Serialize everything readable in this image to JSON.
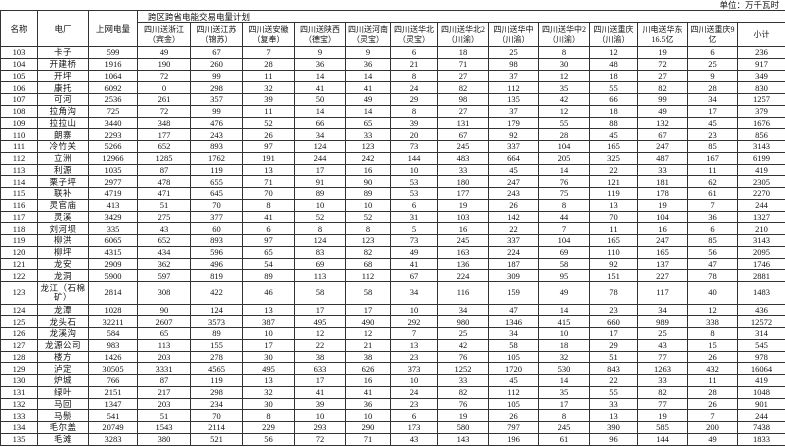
{
  "unit_label": "单位：万千瓦时",
  "headers": {
    "id": "名称",
    "plant": "电厂",
    "grid": "上网电量",
    "group": "跨区跨省电能交易电量计划",
    "sub": [
      "四川送浙江（宾金）",
      "四川送江苏（锦苏）",
      "四川送安徽（复奉）",
      "四川送陕西（德宝）",
      "四川送河南（灵宝）",
      "四川送华北（灵宝）",
      "四川送华北2（川渝）",
      "四川送华中（川渝）",
      "四川送华中2（川渝）",
      "四川送重庆（川渝）",
      "川电送华东16.5亿",
      "四川送重庆9亿",
      "小计"
    ]
  },
  "rows": [
    [
      "103",
      "卡子",
      "599",
      "49",
      "67",
      "7",
      "9",
      "9",
      "6",
      "18",
      "25",
      "8",
      "12",
      "19",
      "6",
      "236"
    ],
    [
      "104",
      "开建桥",
      "1916",
      "190",
      "260",
      "28",
      "36",
      "36",
      "21",
      "71",
      "98",
      "30",
      "48",
      "72",
      "25",
      "917"
    ],
    [
      "105",
      "开坪",
      "1064",
      "72",
      "99",
      "11",
      "14",
      "14",
      "8",
      "27",
      "37",
      "12",
      "18",
      "27",
      "9",
      "349"
    ],
    [
      "106",
      "康托",
      "6092",
      "0",
      "298",
      "32",
      "41",
      "41",
      "24",
      "82",
      "112",
      "35",
      "55",
      "82",
      "28",
      "830"
    ],
    [
      "107",
      "可河",
      "2536",
      "261",
      "357",
      "39",
      "50",
      "49",
      "29",
      "98",
      "135",
      "42",
      "66",
      "99",
      "34",
      "1257"
    ],
    [
      "108",
      "拉角沟",
      "725",
      "72",
      "99",
      "11",
      "14",
      "14",
      "8",
      "27",
      "37",
      "12",
      "18",
      "49",
      "17",
      "379"
    ],
    [
      "109",
      "拉拉山",
      "3440",
      "348",
      "476",
      "52",
      "66",
      "65",
      "39",
      "131",
      "179",
      "55",
      "88",
      "132",
      "45",
      "1676"
    ],
    [
      "110",
      "朗寨",
      "2293",
      "177",
      "243",
      "26",
      "34",
      "33",
      "20",
      "67",
      "92",
      "28",
      "45",
      "67",
      "23",
      "856"
    ],
    [
      "111",
      "冷竹关",
      "5266",
      "652",
      "893",
      "97",
      "124",
      "123",
      "73",
      "245",
      "337",
      "104",
      "165",
      "247",
      "85",
      "3143"
    ],
    [
      "112",
      "立洲",
      "12966",
      "1285",
      "1762",
      "191",
      "244",
      "242",
      "144",
      "483",
      "664",
      "205",
      "325",
      "487",
      "167",
      "6199"
    ],
    [
      "113",
      "利源",
      "1035",
      "87",
      "119",
      "13",
      "17",
      "16",
      "10",
      "33",
      "45",
      "14",
      "22",
      "33",
      "11",
      "419"
    ],
    [
      "114",
      "栗子坪",
      "2977",
      "478",
      "655",
      "71",
      "91",
      "90",
      "53",
      "180",
      "247",
      "76",
      "121",
      "181",
      "62",
      "2305"
    ],
    [
      "115",
      "联补",
      "4719",
      "471",
      "645",
      "70",
      "89",
      "89",
      "53",
      "177",
      "243",
      "75",
      "119",
      "178",
      "61",
      "2270"
    ],
    [
      "116",
      "灵官庙",
      "413",
      "51",
      "70",
      "8",
      "10",
      "10",
      "6",
      "19",
      "26",
      "8",
      "13",
      "19",
      "7",
      "244"
    ],
    [
      "117",
      "灵溪",
      "3429",
      "275",
      "377",
      "41",
      "52",
      "52",
      "31",
      "103",
      "142",
      "44",
      "70",
      "104",
      "36",
      "1327"
    ],
    [
      "118",
      "刘河坝",
      "335",
      "43",
      "60",
      "6",
      "8",
      "8",
      "5",
      "16",
      "22",
      "7",
      "11",
      "16",
      "6",
      "210"
    ],
    [
      "119",
      "柳洪",
      "6065",
      "652",
      "893",
      "97",
      "124",
      "123",
      "73",
      "245",
      "337",
      "104",
      "165",
      "247",
      "85",
      "3143"
    ],
    [
      "120",
      "柳坪",
      "4315",
      "434",
      "596",
      "65",
      "83",
      "82",
      "49",
      "163",
      "224",
      "69",
      "110",
      "165",
      "56",
      "2095"
    ],
    [
      "121",
      "龙安",
      "2909",
      "362",
      "496",
      "54",
      "69",
      "68",
      "41",
      "136",
      "187",
      "58",
      "92",
      "137",
      "47",
      "1746"
    ],
    [
      "122",
      "龙洞",
      "5900",
      "597",
      "819",
      "89",
      "113",
      "112",
      "67",
      "224",
      "309",
      "95",
      "151",
      "227",
      "78",
      "2881"
    ],
    [
      "123",
      "龙江（石棉矿）",
      "2814",
      "308",
      "422",
      "46",
      "58",
      "58",
      "34",
      "116",
      "159",
      "49",
      "78",
      "117",
      "40",
      "1483"
    ],
    [
      "124",
      "龙潭",
      "1028",
      "90",
      "124",
      "13",
      "17",
      "17",
      "10",
      "34",
      "47",
      "14",
      "23",
      "34",
      "12",
      "436"
    ],
    [
      "125",
      "龙头石",
      "32211",
      "2607",
      "3573",
      "387",
      "495",
      "490",
      "292",
      "980",
      "1346",
      "415",
      "660",
      "989",
      "338",
      "12572"
    ],
    [
      "126",
      "龙溪沟",
      "584",
      "65",
      "89",
      "10",
      "12",
      "12",
      "7",
      "25",
      "34",
      "10",
      "17",
      "25",
      "8",
      "314"
    ],
    [
      "127",
      "龙源公司",
      "983",
      "113",
      "155",
      "17",
      "22",
      "21",
      "13",
      "42",
      "58",
      "18",
      "29",
      "43",
      "15",
      "545"
    ],
    [
      "128",
      "楼方",
      "1426",
      "203",
      "278",
      "30",
      "38",
      "38",
      "23",
      "76",
      "105",
      "32",
      "51",
      "77",
      "26",
      "978"
    ],
    [
      "129",
      "泸定",
      "30505",
      "3331",
      "4565",
      "495",
      "633",
      "626",
      "373",
      "1252",
      "1720",
      "530",
      "843",
      "1263",
      "432",
      "16064"
    ],
    [
      "130",
      "炉城",
      "766",
      "87",
      "119",
      "13",
      "17",
      "16",
      "10",
      "33",
      "45",
      "14",
      "22",
      "33",
      "11",
      "419"
    ],
    [
      "131",
      "绿叶",
      "2151",
      "217",
      "298",
      "32",
      "41",
      "41",
      "24",
      "82",
      "112",
      "35",
      "55",
      "82",
      "28",
      "1048"
    ],
    [
      "132",
      "马回",
      "1347",
      "203",
      "234",
      "30",
      "39",
      "36",
      "23",
      "76",
      "105",
      "17",
      "33",
      "77",
      "26",
      "901"
    ],
    [
      "133",
      "马鬃",
      "541",
      "51",
      "70",
      "8",
      "10",
      "10",
      "6",
      "19",
      "26",
      "8",
      "13",
      "19",
      "7",
      "244"
    ],
    [
      "134",
      "毛尔盖",
      "20749",
      "1543",
      "2114",
      "229",
      "293",
      "290",
      "173",
      "580",
      "797",
      "245",
      "390",
      "585",
      "200",
      "7438"
    ],
    [
      "135",
      "毛滩",
      "3283",
      "380",
      "521",
      "56",
      "72",
      "71",
      "43",
      "143",
      "196",
      "61",
      "96",
      "144",
      "49",
      "1833"
    ]
  ]
}
